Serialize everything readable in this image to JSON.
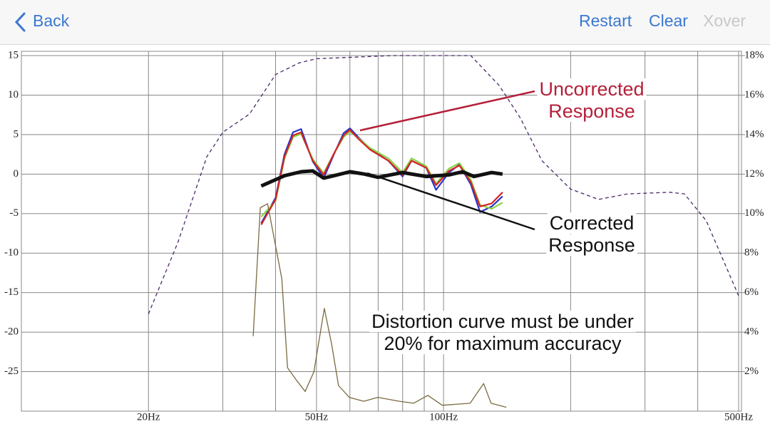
{
  "nav": {
    "back": "Back",
    "actions": [
      "Restart",
      "Clear",
      "Xover"
    ]
  },
  "chart_data": {
    "type": "line",
    "xscale": "log",
    "grid": true,
    "xlim": [
      10,
      500
    ],
    "ylim": [
      -30,
      15
    ],
    "y2lim": [
      0,
      18
    ],
    "xticks": [
      {
        "value": 20,
        "label": "20Hz"
      },
      {
        "value": 50,
        "label": "50Hz"
      },
      {
        "value": 100,
        "label": "100Hz"
      },
      {
        "value": 500,
        "label": "500Hz"
      }
    ],
    "xminor": [
      30,
      40,
      60,
      70,
      80,
      90,
      200,
      300,
      400
    ],
    "yticks": [
      15,
      10,
      5,
      0,
      -5,
      -10,
      -15,
      -20,
      -25
    ],
    "y2ticks": [
      {
        "value": 18,
        "label": "18%"
      },
      {
        "value": 16,
        "label": "16%"
      },
      {
        "value": 14,
        "label": "14%"
      },
      {
        "value": 12,
        "label": "12%"
      },
      {
        "value": 10,
        "label": "10%"
      },
      {
        "value": 8,
        "label": "8%"
      },
      {
        "value": 6,
        "label": "6%"
      },
      {
        "value": 4,
        "label": "4%"
      },
      {
        "value": 2,
        "label": "2%"
      }
    ],
    "series": [
      {
        "color": "#4a2a6a",
        "dash": true,
        "width": 1.3,
        "x": [
          20,
          23.5,
          27.5,
          30,
          34.7,
          40,
          45.6,
          50,
          75.6,
          116,
          135.5,
          152,
          171,
          200,
          233,
          273,
          344,
          372,
          419,
          500
        ],
        "values": [
          -17.7,
          -8.6,
          2.2,
          5.3,
          7.6,
          12.6,
          14.1,
          14.6,
          15,
          15,
          11.2,
          7.1,
          1.7,
          -1.9,
          -3.2,
          -2.5,
          -2.3,
          -2.5,
          -5.9,
          -15.4
        ]
      },
      {
        "color": "#2a36c8",
        "width": 2.2,
        "x": [
          37,
          40,
          42,
          44,
          46,
          47,
          49,
          52,
          55,
          58,
          60,
          63,
          67,
          74,
          80,
          84,
          91,
          96,
          103,
          109,
          116,
          122,
          130,
          138
        ],
        "values": [
          -6.2,
          -3.0,
          2.5,
          5.3,
          5.7,
          4.3,
          1.6,
          -0.5,
          2.5,
          5.2,
          5.8,
          4.6,
          3.2,
          1.7,
          -0.3,
          1.7,
          0.8,
          -2.0,
          0.2,
          1.2,
          -1.3,
          -4.8,
          -4.1,
          -2.8
        ]
      },
      {
        "color": "#8ad448",
        "width": 2.2,
        "x": [
          37,
          40,
          42,
          44,
          46,
          47,
          49,
          52,
          55,
          58,
          60,
          63,
          67,
          74,
          80,
          84,
          91,
          96,
          103,
          109,
          116,
          122,
          130,
          138
        ],
        "values": [
          -5.4,
          -3.4,
          2.0,
          4.7,
          5.1,
          4.0,
          1.9,
          0.1,
          2.6,
          4.7,
          5.4,
          4.5,
          3.3,
          2.0,
          0.2,
          2.0,
          1.0,
          -1.2,
          0.7,
          1.4,
          -0.7,
          -3.9,
          -4.4,
          -3.6
        ]
      },
      {
        "color": "#d42424",
        "width": 2.2,
        "x": [
          37,
          40,
          42,
          44,
          46,
          47,
          49,
          52,
          55,
          58,
          60,
          63,
          67,
          74,
          80,
          84,
          91,
          96,
          103,
          109,
          116,
          122,
          130,
          138
        ],
        "values": [
          -6.4,
          -3.2,
          2.2,
          4.9,
          5.3,
          4.0,
          1.7,
          -0.1,
          2.6,
          4.9,
          5.6,
          4.4,
          3.1,
          1.7,
          -0.1,
          1.7,
          0.8,
          -1.4,
          0.4,
          1.1,
          -1.0,
          -4.1,
          -3.7,
          -2.3
        ]
      },
      {
        "color": "#111111",
        "width": 5,
        "x": [
          37,
          42,
          46,
          49,
          52,
          55,
          60,
          65,
          70,
          80,
          91,
          103,
          111,
          118,
          130,
          138
        ],
        "values": [
          -1.5,
          -0.2,
          0.3,
          0.4,
          -0.5,
          -0.2,
          0.3,
          0,
          -0.4,
          0.2,
          -0.3,
          -0.1,
          0.3,
          -0.3,
          0.2,
          0
        ]
      },
      {
        "color": "#7a6a40",
        "width": 1.3,
        "axis": "y2",
        "x": [
          35.4,
          36.8,
          38.3,
          41.4,
          42.7,
          44.7,
          47,
          49.3,
          52.2,
          54.3,
          56.4,
          59.8,
          64.7,
          69.9,
          78.6,
          84.9,
          91.8,
          99.3,
          115.6,
          124.4,
          129.6,
          140.8
        ],
        "values": [
          3.8,
          10.3,
          10.5,
          6.7,
          2.2,
          1.6,
          1.0,
          2.0,
          5.2,
          3.4,
          1.3,
          0.7,
          0.5,
          0.7,
          0.5,
          0.4,
          0.8,
          0.3,
          0.4,
          1.4,
          0.4,
          0.2
        ]
      }
    ],
    "annotations": [
      {
        "lines": [
          "Uncorrected",
          "Response"
        ],
        "color": "#b5203a"
      },
      {
        "lines": [
          "Corrected",
          "Response"
        ],
        "color": "#111111"
      },
      {
        "lines": [
          "Distortion curve must be under",
          "20% for maximum accuracy"
        ],
        "color": "#111111"
      }
    ]
  }
}
